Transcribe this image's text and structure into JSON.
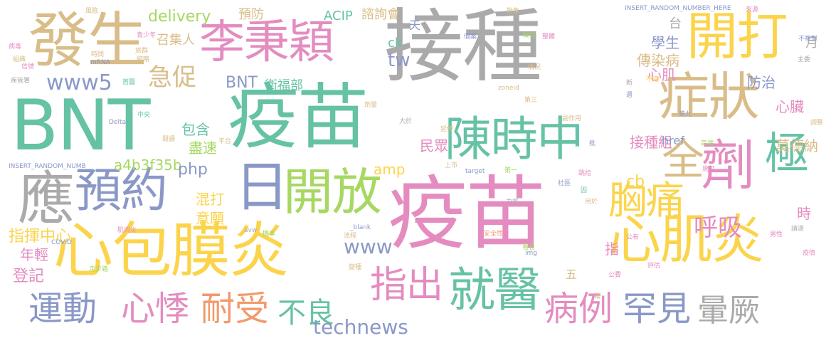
{
  "colors": {
    "gray": "#aaaaaa",
    "green": "#5fbf9b",
    "yellow": "#fbd44b",
    "pink": "#e48cc0",
    "tan": "#d9bd88",
    "slate": "#8a98c8",
    "lime": "#a6d862",
    "orange": "#f19a6d",
    "mint": "#66c2a5"
  },
  "words": [
    "接種",
    "疫苗",
    "疫苗",
    "BNT",
    "發生",
    "李秉穎",
    "開打",
    "症狀",
    "陳時中",
    "劑",
    "心包膜炎",
    "心肌炎",
    "應",
    "預約",
    "日",
    "開放",
    "極",
    "全",
    "就醫",
    "指出",
    "運動",
    "心悸",
    "耐受",
    "不良",
    "病例",
    "罕見",
    "暈厥",
    "胸痛",
    "呼吸",
    "急促",
    "www5",
    "technews",
    "www",
    "a4b3f35b",
    "php",
    "amp",
    "cb",
    "tw",
    "ck",
    "delivery",
    "ACIP",
    "諮詢會",
    "衛福部",
    "BNT",
    "混打",
    "意願",
    "指揮中心",
    "年輕",
    "登記",
    "包含",
    "盡速",
    "民眾",
    "學生",
    "傳染病",
    "心肌",
    "防治",
    "心臟",
    "莫德納",
    "接種組",
    "href",
    "召集人",
    "預防",
    "指",
    "時",
    "月",
    "台",
    "天",
    "五",
    "n"
  ],
  "tiny_words": [
    "風險",
    "INSERT_RANDOM_NUMBER_HERE",
    "來源",
    "青少年",
    "旅群",
    "時間",
    "mRNA",
    "縮略",
    "首圖",
    "Delta",
    "中央",
    "疾管署",
    "信號",
    "組織",
    "病毒",
    "INSERT_RANDOM_NUMB",
    "COVID",
    "肌肉炎",
    "走步路",
    "安全性",
    "副作用",
    "平台",
    "閱讀",
    "變種",
    "公布",
    "男性",
    "請遂",
    "zoneid",
    "target",
    "img",
    "avw",
    "_blank",
    "第一",
    "第三",
    "用於",
    "力氣",
    "評估",
    "公費",
    "輪",
    "大於",
    "延伸",
    "上市",
    "流程",
    "機率",
    "看看",
    "疫情",
    "情況",
    "對象",
    "批",
    "社區",
    "個案",
    "主委",
    "不適",
    "第九",
    "新",
    "週",
    "不複製",
    "調整",
    "高端",
    "施打",
    "跳拾",
    "因",
    "劑量",
    "疑似",
    "整體",
    "提醒",
    "暫停"
  ]
}
